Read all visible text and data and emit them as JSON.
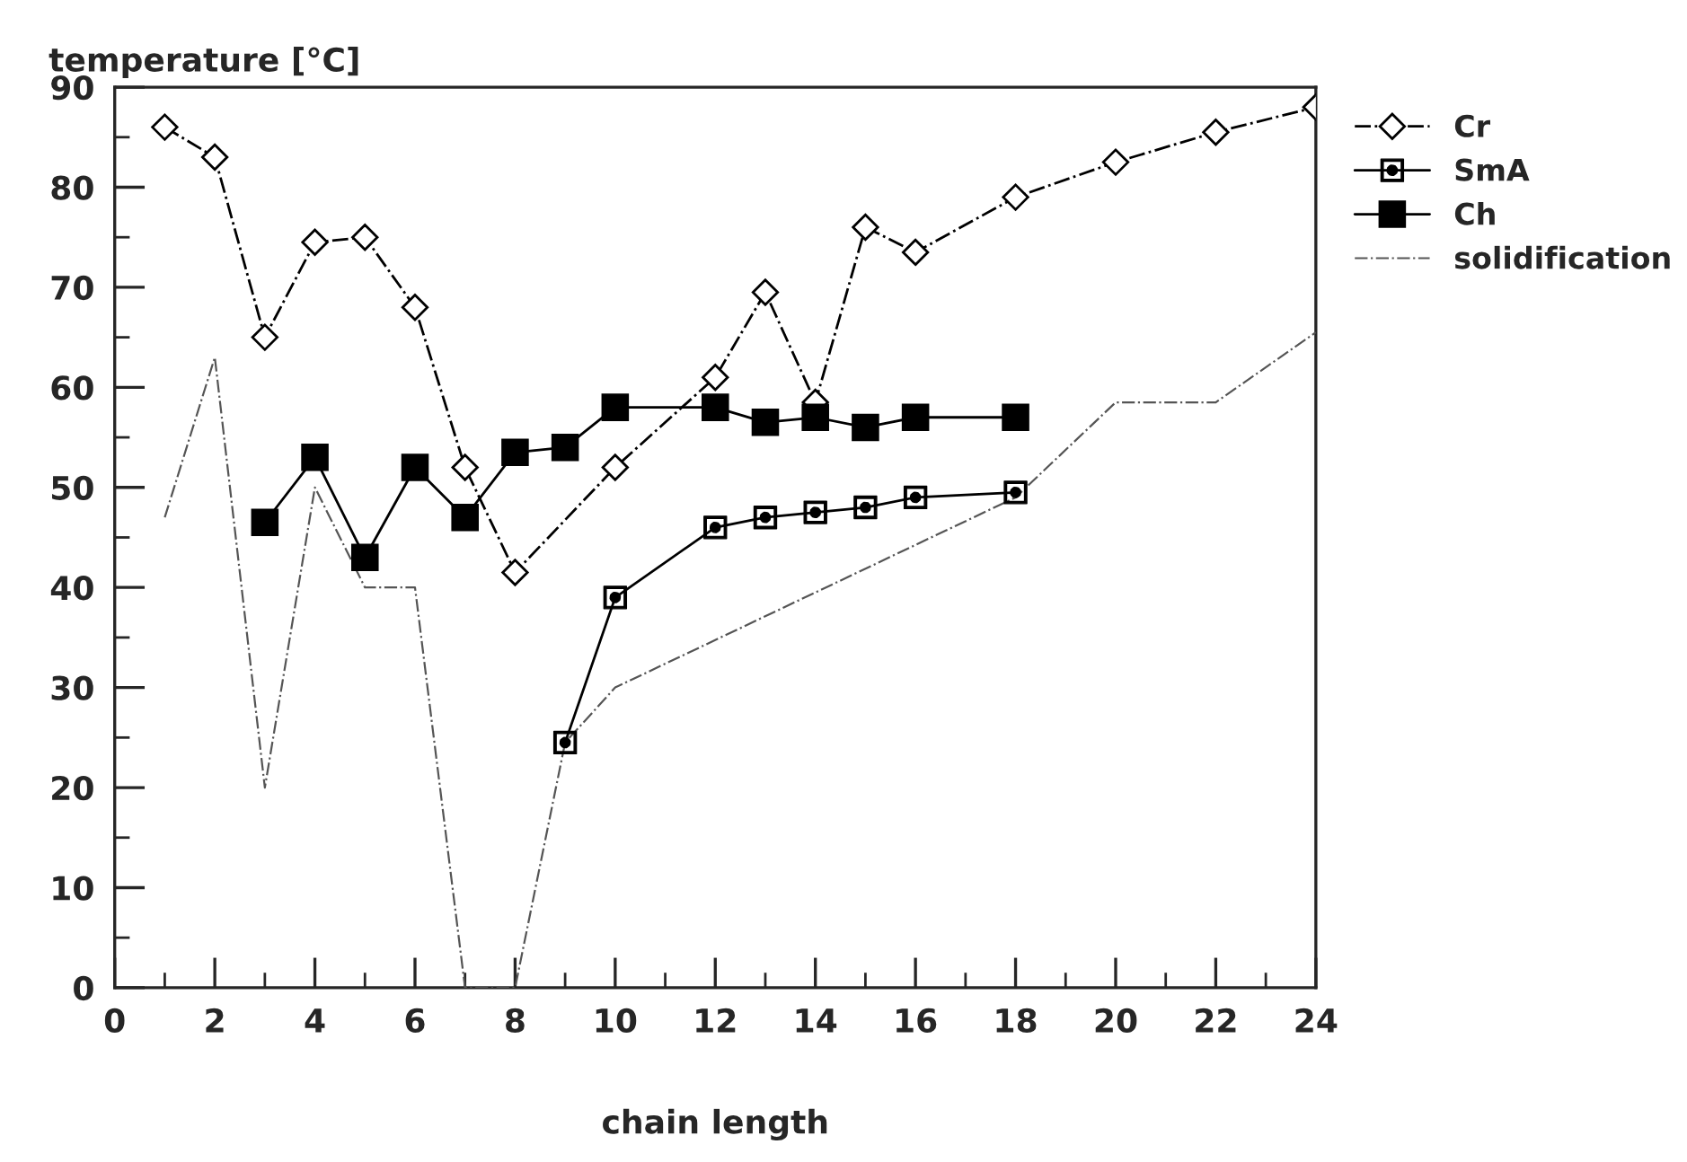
{
  "chart_data": {
    "type": "line",
    "xlabel": "chain length",
    "ylabel": "temperature [°C]",
    "xlim": [
      0,
      24
    ],
    "xticks": [
      0,
      2,
      4,
      6,
      8,
      10,
      12,
      14,
      16,
      18,
      20,
      22,
      24
    ],
    "ylim": [
      0,
      90
    ],
    "yticks": [
      0,
      10,
      20,
      30,
      40,
      50,
      60,
      70,
      80,
      90
    ],
    "grid": false,
    "legend": "top right",
    "series": [
      {
        "name": "Cr",
        "color": "#000000",
        "marker": "diamond",
        "line_style": "dashdot",
        "x": [
          1,
          2,
          3,
          4,
          5,
          6,
          7,
          8,
          10,
          12,
          13,
          14,
          15,
          16,
          18,
          20,
          22,
          24
        ],
        "values": [
          86,
          83,
          65,
          74.5,
          75,
          68,
          52,
          41.5,
          52,
          61,
          69.5,
          58.5,
          76,
          73.5,
          79,
          82.5,
          85.5,
          88
        ]
      },
      {
        "name": "SmA",
        "color": "#000000",
        "marker": "square",
        "line_style": "solid",
        "x": [
          9,
          10,
          12,
          13,
          14,
          15,
          16,
          18
        ],
        "values": [
          24.5,
          39,
          46,
          47,
          47.5,
          48,
          49,
          49.5
        ]
      },
      {
        "name": "Ch",
        "color": "#000000",
        "marker": "square",
        "line_style": "solid",
        "x": [
          3,
          4,
          5,
          6,
          7,
          8,
          9,
          10,
          12,
          13,
          14,
          15,
          16,
          18
        ],
        "values": [
          46.5,
          53,
          43,
          52,
          47,
          53.5,
          54,
          58,
          58,
          56.5,
          57,
          56,
          57,
          57
        ]
      },
      {
        "name": "solidification",
        "color": "#555555",
        "marker": "none",
        "line_style": "dashdot",
        "x": [
          1,
          2,
          3,
          4,
          5,
          6,
          7,
          8,
          9,
          10,
          18,
          20,
          22,
          24
        ],
        "values": [
          47,
          63,
          20,
          50,
          40,
          40,
          0,
          0,
          24.5,
          30,
          49,
          58.5,
          58.5,
          65.5
        ]
      }
    ]
  }
}
